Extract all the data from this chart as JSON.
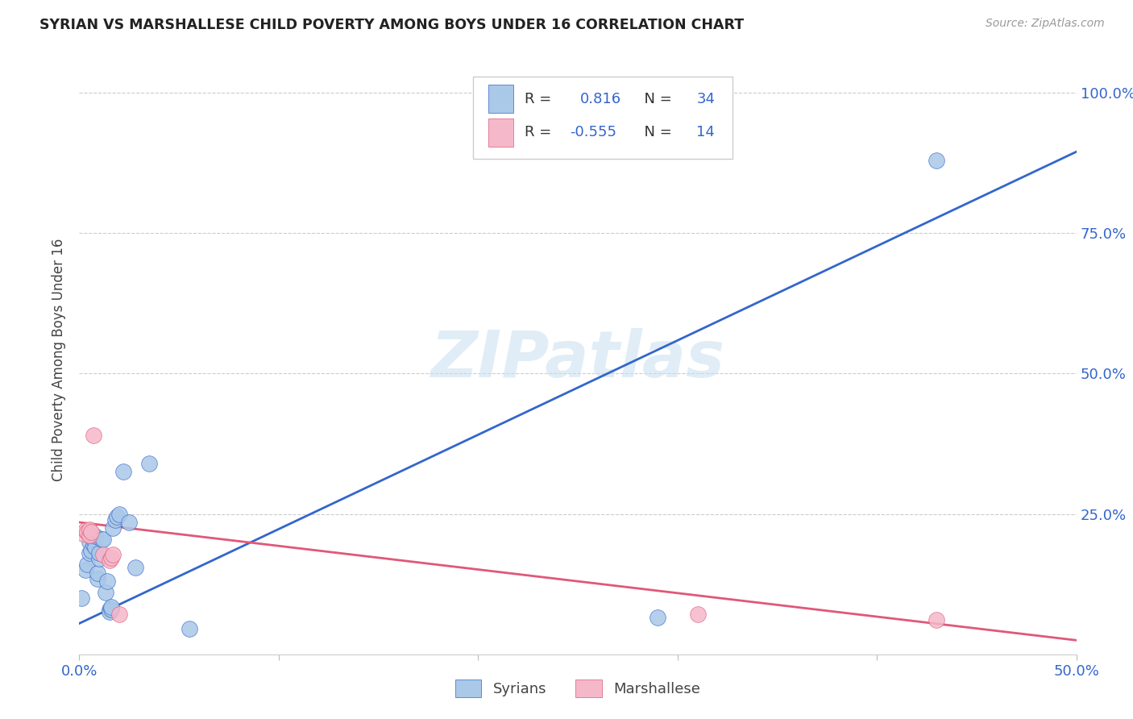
{
  "title": "SYRIAN VS MARSHALLESE CHILD POVERTY AMONG BOYS UNDER 16 CORRELATION CHART",
  "source": "Source: ZipAtlas.com",
  "ylabel": "Child Poverty Among Boys Under 16",
  "xlim": [
    0.0,
    0.5
  ],
  "ylim": [
    0.0,
    1.05
  ],
  "watermark": "ZIPatlas",
  "legend_r_blue": "0.816",
  "legend_n_blue": "34",
  "legend_r_pink": "-0.555",
  "legend_n_pink": "14",
  "syrian_color": "#aac8e8",
  "marshallese_color": "#f5b8ca",
  "blue_line_color": "#3366cc",
  "pink_line_color": "#e05878",
  "blue_text_color": "#3366cc",
  "syrian_x": [
    0.001,
    0.003,
    0.004,
    0.005,
    0.005,
    0.006,
    0.006,
    0.007,
    0.007,
    0.008,
    0.008,
    0.009,
    0.009,
    0.01,
    0.01,
    0.011,
    0.012,
    0.013,
    0.014,
    0.015,
    0.015,
    0.016,
    0.016,
    0.017,
    0.018,
    0.019,
    0.02,
    0.022,
    0.025,
    0.028,
    0.035,
    0.055,
    0.29,
    0.43
  ],
  "syrian_y": [
    0.1,
    0.15,
    0.16,
    0.18,
    0.2,
    0.185,
    0.21,
    0.195,
    0.205,
    0.19,
    0.21,
    0.135,
    0.145,
    0.17,
    0.18,
    0.205,
    0.205,
    0.11,
    0.13,
    0.08,
    0.075,
    0.08,
    0.085,
    0.225,
    0.24,
    0.245,
    0.25,
    0.325,
    0.235,
    0.155,
    0.34,
    0.045,
    0.065,
    0.88
  ],
  "marshallese_x": [
    0.002,
    0.003,
    0.004,
    0.005,
    0.005,
    0.006,
    0.007,
    0.012,
    0.015,
    0.016,
    0.017,
    0.02,
    0.31,
    0.43
  ],
  "marshallese_y": [
    0.215,
    0.22,
    0.218,
    0.212,
    0.222,
    0.218,
    0.39,
    0.178,
    0.168,
    0.172,
    0.178,
    0.072,
    0.072,
    0.062
  ],
  "blue_line_x0": 0.0,
  "blue_line_y0": 0.055,
  "blue_line_x1": 0.5,
  "blue_line_y1": 0.895,
  "pink_line_x0": 0.0,
  "pink_line_y0": 0.235,
  "pink_line_x1": 0.5,
  "pink_line_y1": 0.025,
  "background_color": "#ffffff",
  "grid_color": "#cccccc"
}
